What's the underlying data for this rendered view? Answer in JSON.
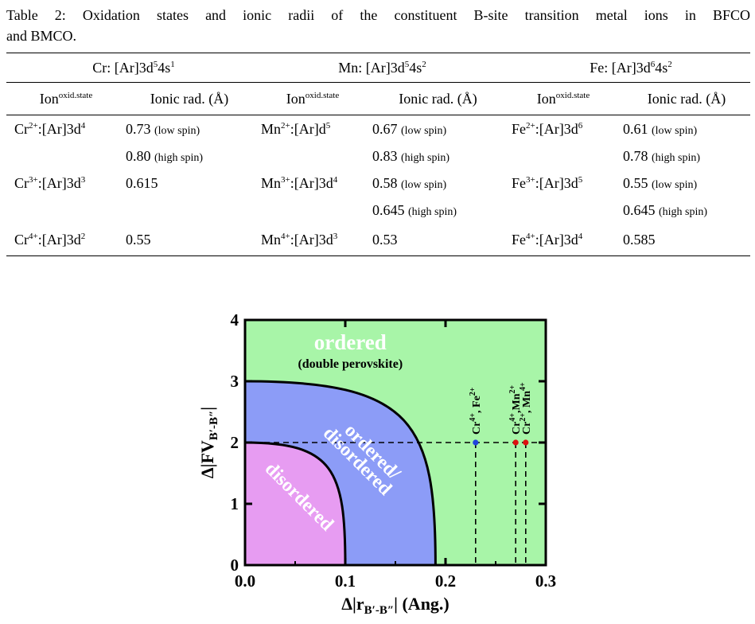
{
  "caption": {
    "line1": "Table 2: Oxidation states and ionic radii of the constituent B-site transition metal ions in BFCO",
    "line2": "and BMCO."
  },
  "table": {
    "groups": [
      {
        "base": "Cr: [Ar]3d",
        "e1": "5",
        "mid": "4s",
        "e2": "1"
      },
      {
        "base": "Mn: [Ar]3d",
        "e1": "5",
        "mid": "4s",
        "e2": "2"
      },
      {
        "base": "Fe: [Ar]3d",
        "e1": "6",
        "mid": "4s",
        "e2": "2"
      }
    ],
    "subheader": {
      "ion": "Ion",
      "ion_sup": "oxid.state",
      "rad": "Ionic rad. (Å)"
    },
    "rows": [
      {
        "cr_el": "Cr",
        "cr_ch": "2+",
        "cr_cfg": ":[Ar]3d",
        "cr_n": "4",
        "cr_r": "0.73",
        "cr_s": "(low spin)",
        "mn_el": "Mn",
        "mn_ch": "2+",
        "mn_cfg": ":[Ar]d",
        "mn_n": "5",
        "mn_r": "0.67",
        "mn_s": "(low spin)",
        "fe_el": "Fe",
        "fe_ch": "2+",
        "fe_cfg": ":[Ar]3d",
        "fe_n": "6",
        "fe_r": "0.61",
        "fe_s": "(low spin)"
      },
      {
        "cr_r": "0.80",
        "cr_s": "(high spin)",
        "mn_r": "0.83",
        "mn_s": "(high spin)",
        "fe_r": "0.78",
        "fe_s": "(high spin)"
      },
      {
        "cr_el": "Cr",
        "cr_ch": "3+",
        "cr_cfg": ":[Ar]3d",
        "cr_n": "3",
        "cr_r": "0.615",
        "mn_el": "Mn",
        "mn_ch": "3+",
        "mn_cfg": ":[Ar]3d",
        "mn_n": "4",
        "mn_r": "0.58",
        "mn_s": "(low spin)",
        "fe_el": "Fe",
        "fe_ch": "3+",
        "fe_cfg": ":[Ar]3d",
        "fe_n": "5",
        "fe_r": "0.55",
        "fe_s": "(low spin)"
      },
      {
        "mn_r": "0.645",
        "mn_s": "(high spin)",
        "fe_r": "0.645",
        "fe_s": "(high spin)"
      },
      {
        "cr_el": "Cr",
        "cr_ch": "4+",
        "cr_cfg": ":[Ar]3d",
        "cr_n": "2",
        "cr_r": "0.55",
        "mn_el": "Mn",
        "mn_ch": "4+",
        "mn_cfg": ":[Ar]3d",
        "mn_n": "3",
        "mn_r": "0.53",
        "fe_el": "Fe",
        "fe_ch": "4+",
        "fe_cfg": ":[Ar]3d",
        "fe_n": "4",
        "fe_r": "0.585"
      }
    ]
  },
  "chart_data": {
    "type": "scatter",
    "xlabel": {
      "pre": "Δ|r",
      "sub": "B′-B″",
      "post": "| (Ang.)"
    },
    "ylabel": {
      "pre": "Δ|FV",
      "sub": "B′-B″",
      "post": "|"
    },
    "xlim": [
      0,
      0.3
    ],
    "ylim": [
      0,
      4
    ],
    "xticks": [
      "0.0",
      "0.1",
      "0.2",
      "0.3"
    ],
    "yticks": [
      "0",
      "1",
      "2",
      "3",
      "4"
    ],
    "regions": [
      {
        "name": "ordered",
        "label": "ordered",
        "sublabel": "(double perovskite)",
        "color": "#a8f5a8"
      },
      {
        "name": "ordered/disordered",
        "label": "ordered/",
        "label2": "disordered",
        "color": "#8c9cf7",
        "boundary_x_at_y0": 0.19,
        "boundary_y_at_x0": 3.0
      },
      {
        "name": "disordered",
        "label": "disordered",
        "color": "#e79cf2",
        "boundary_x_at_y0": 0.1,
        "boundary_y_at_x0": 2.0
      }
    ],
    "reference_line_y": 2,
    "points": [
      {
        "x": 0.23,
        "y": 2,
        "color": "#2244dd",
        "label": "Cr4+, Fe2+"
      },
      {
        "x": 0.27,
        "y": 2,
        "color": "#dd1111",
        "label": "Cr4+,Mn2+"
      },
      {
        "x": 0.28,
        "y": 2,
        "color": "#dd1111",
        "label": "Cr2+, Mn4+"
      }
    ],
    "point_label_parts": [
      [
        "Cr",
        "4+",
        ", Fe",
        "2+"
      ],
      [
        "Cr",
        "4+",
        ",Mn",
        "2+"
      ],
      [
        "Cr",
        "2+",
        ", Mn",
        "4+"
      ]
    ]
  }
}
